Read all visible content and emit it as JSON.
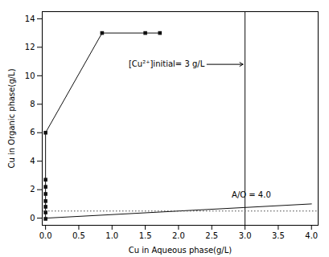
{
  "chart_data": {
    "type": "line",
    "xlabel": "Cu in Aqueous phase(g/L)",
    "ylabel": "Cu in Organic phase(g/L)",
    "xlim": [
      -0.05,
      4.1
    ],
    "ylim": [
      -0.5,
      14.5
    ],
    "xticks": [
      {
        "value": 0.0,
        "label": "0.0"
      },
      0.5,
      {
        "value": 1.0,
        "label": "1.0"
      },
      1.5,
      {
        "value": 2.0,
        "label": "2.0"
      },
      2.5,
      {
        "value": 3.0,
        "label": "3.0"
      },
      3.5,
      {
        "value": 4.0,
        "label": "4.0"
      }
    ],
    "yticks": [
      0,
      2,
      4,
      6,
      8,
      10,
      12,
      14
    ],
    "grid": false,
    "series": [
      {
        "x": [
          0.0,
          0.0,
          0.0,
          0.0,
          0.0,
          0.0,
          0.0,
          0.0,
          0.85,
          1.5,
          1.72
        ],
        "values": [
          -0.05,
          0.4,
          0.8,
          1.2,
          1.7,
          2.2,
          2.7,
          6.0,
          13.0,
          13.0,
          13.0
        ],
        "color": "#111111",
        "marker": "square"
      },
      {
        "x": [
          0.0,
          4.0
        ],
        "values": [
          0.0,
          1.0
        ],
        "color": "#111111"
      }
    ],
    "vline": {
      "x": 3.0,
      "color": "#111111"
    },
    "hline": {
      "y": 0.5,
      "color": "#444444",
      "line_style": "dotted"
    },
    "annotations": [
      {
        "text": "[Cu²⁺]initial= 3 g/L",
        "x": 1.25,
        "y": 10.8,
        "arrow_x": 2.97,
        "arrow_y": 10.8
      },
      {
        "text": "A/O = 4.0",
        "x": 2.8,
        "y": 1.65
      }
    ]
  }
}
